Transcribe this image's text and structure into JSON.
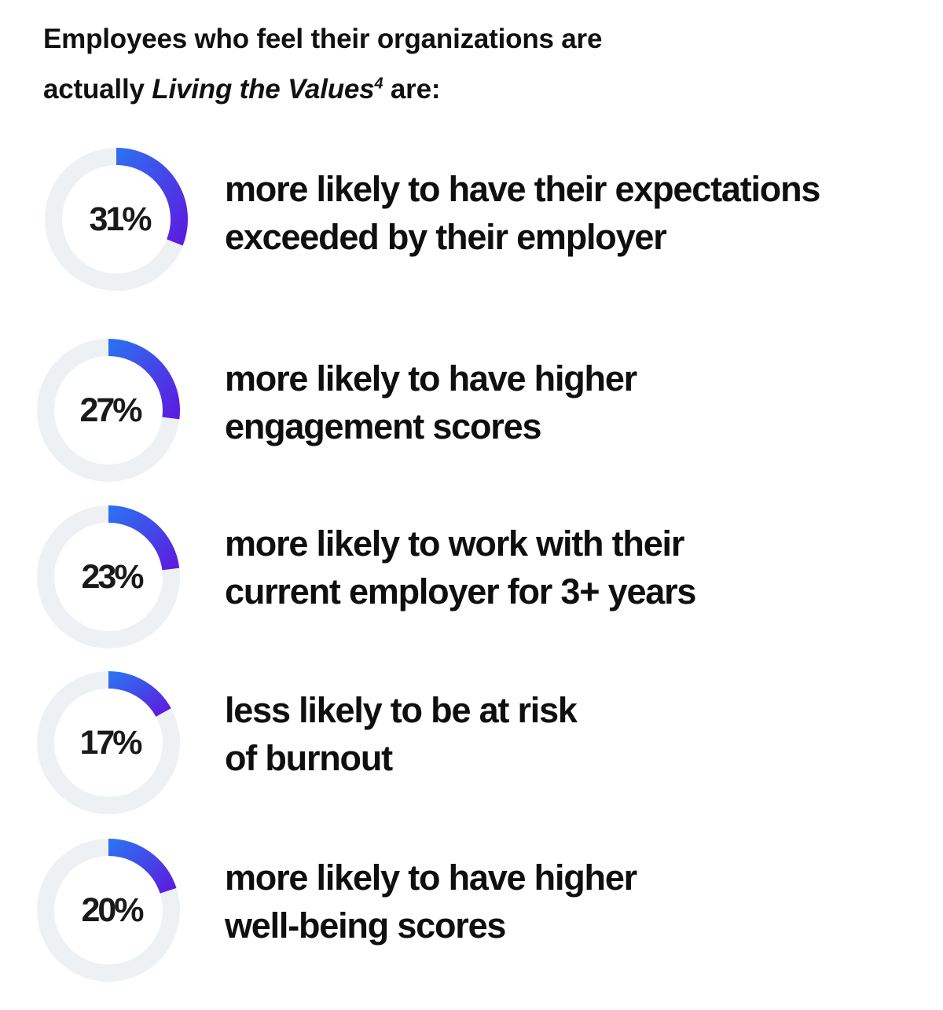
{
  "header": {
    "line1": "Employees who feel their organizations are",
    "line2_pre": "actually ",
    "line2_em": "Living the Values",
    "line2_sup": "4",
    "line2_post": " are:"
  },
  "colors": {
    "track": "#edf1f4",
    "arc_start": "#2d6ff0",
    "arc_end": "#5b1ee0"
  },
  "chart_data": {
    "type": "pie",
    "title": "Employees who feel their organizations are actually Living the Values are:",
    "items": [
      {
        "label": "31%",
        "value": 31,
        "line1": "more likely to have their expectations",
        "line2": "exceeded by their employer"
      },
      {
        "label": "27%",
        "value": 27,
        "line1": "more likely to have higher",
        "line2": "engagement scores"
      },
      {
        "label": "23%",
        "value": 23,
        "line1": "more likely to work with their",
        "line2": "current employer for 3+ years"
      },
      {
        "label": "17%",
        "value": 17,
        "line1": "less likely to be at risk",
        "line2": "of burnout"
      },
      {
        "label": "20%",
        "value": 20,
        "line1": "more likely to have higher",
        "line2": "well-being scores"
      }
    ]
  }
}
